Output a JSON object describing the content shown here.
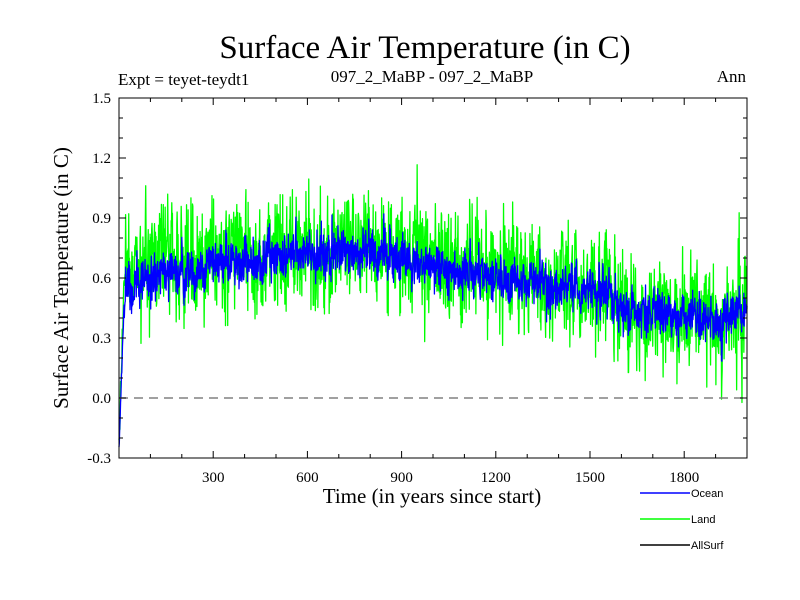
{
  "chart_data": {
    "type": "line",
    "title": "Surface Air Temperature (in C)",
    "subtitle_left": "Expt = teyet-teydt1",
    "subtitle_center": "097_2_MaBP - 097_2_MaBP",
    "subtitle_right": "Ann",
    "xlabel": "Time (in years since start)",
    "ylabel": "Surface Air Temperature (in C)",
    "xlim": [
      0,
      2000
    ],
    "ylim": [
      -0.3,
      1.5
    ],
    "xticks": [
      300,
      600,
      900,
      1200,
      1500,
      1800
    ],
    "yticks": [
      -0.3,
      0.0,
      0.3,
      0.6,
      0.9,
      1.2,
      1.5
    ],
    "xtick_labels": [
      "300",
      "600",
      "900",
      "1200",
      "1500",
      "1800"
    ],
    "ytick_labels": [
      "-0.3",
      "0.0",
      "0.3",
      "0.6",
      "0.9",
      "1.2",
      "1.5"
    ],
    "reference_line": {
      "y": 0.0,
      "style": "dashed",
      "color": "#808080"
    },
    "trend_x": [
      0,
      5,
      10,
      15,
      20,
      30,
      50,
      100,
      200,
      300,
      400,
      500,
      600,
      700,
      800,
      900,
      1000,
      1100,
      1200,
      1300,
      1400,
      1500,
      1550,
      1600,
      1700,
      1800,
      1900,
      2000
    ],
    "series": [
      {
        "name": "Ocean",
        "color": "#0000ff",
        "trend": [
          -0.25,
          -0.05,
          0.2,
          0.4,
          0.5,
          0.55,
          0.58,
          0.6,
          0.62,
          0.68,
          0.68,
          0.7,
          0.72,
          0.73,
          0.73,
          0.7,
          0.65,
          0.62,
          0.6,
          0.58,
          0.55,
          0.55,
          0.52,
          0.45,
          0.44,
          0.4,
          0.38,
          0.42
        ],
        "noise_amplitude": 0.13,
        "point_count": 2000
      },
      {
        "name": "Land",
        "color": "#00ff00",
        "trend": [
          -0.25,
          -0.05,
          0.25,
          0.5,
          0.6,
          0.65,
          0.66,
          0.68,
          0.7,
          0.72,
          0.72,
          0.74,
          0.76,
          0.77,
          0.77,
          0.73,
          0.68,
          0.65,
          0.63,
          0.6,
          0.57,
          0.57,
          0.54,
          0.47,
          0.46,
          0.42,
          0.4,
          0.44
        ],
        "noise_amplitude": 0.3,
        "point_count": 2000
      },
      {
        "name": "AllSurf",
        "color": "#000000",
        "visible_in_plot": false
      }
    ],
    "legend": {
      "position": "bottom-right",
      "entries": [
        "Ocean",
        "Land",
        "AllSurf"
      ]
    }
  }
}
